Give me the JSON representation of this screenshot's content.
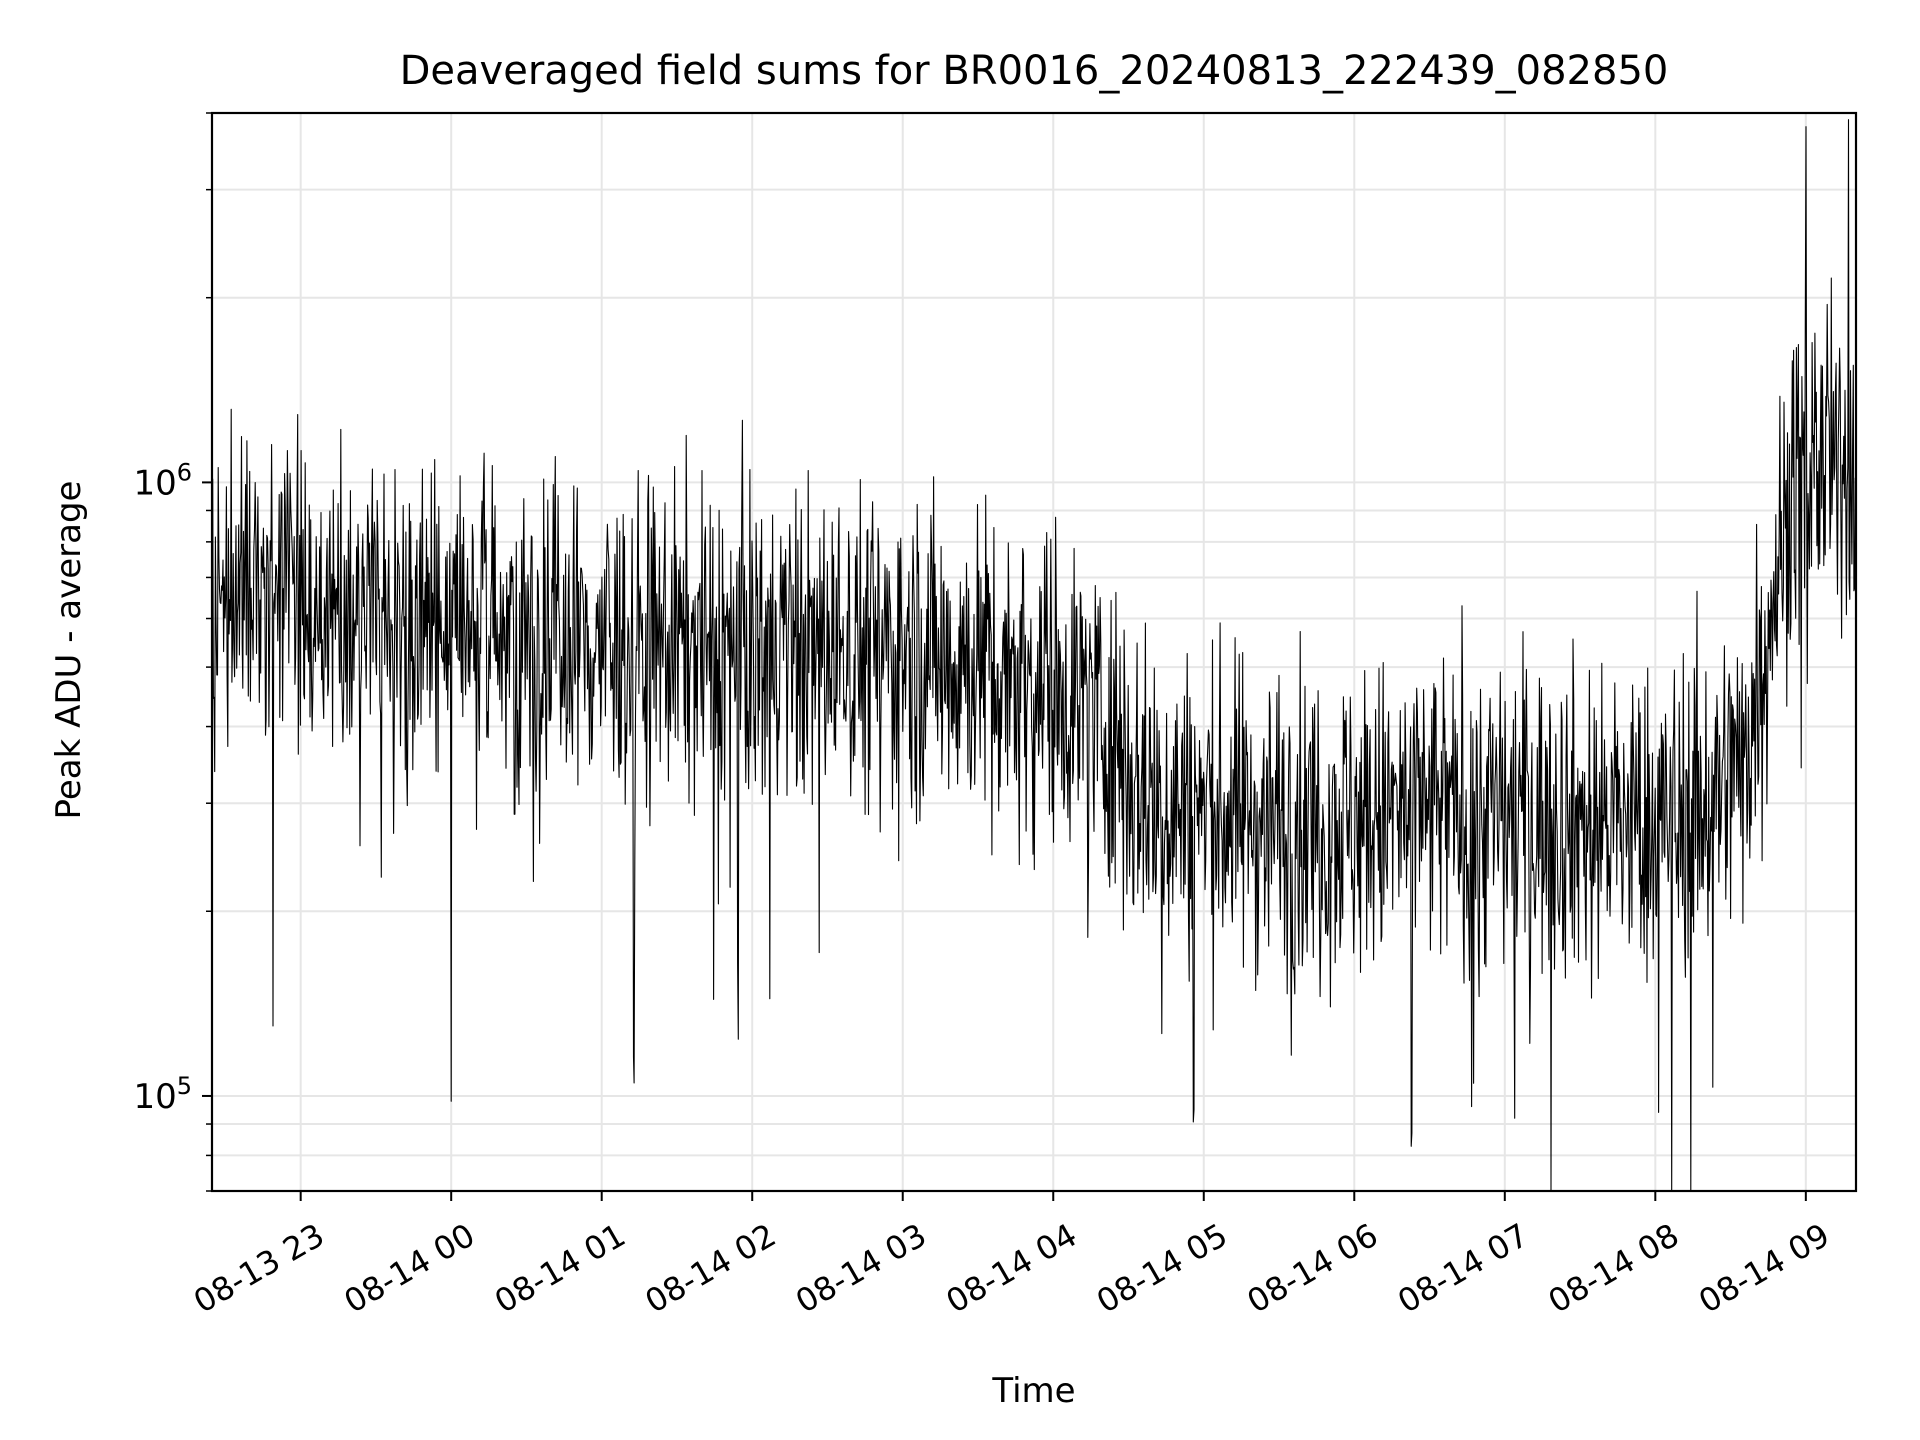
{
  "chart_data": {
    "type": "line",
    "title": "Deaveraged field sums for BR0016_20240813_222439_082850",
    "xlabel": "Time",
    "ylabel": "Peak ADU - average",
    "x_scale": "time",
    "y_scale": "log",
    "xlim": [
      "2024-08-13T22:24:39",
      "2024-08-14T09:20:00"
    ],
    "ylim": [
      70000,
      4000000
    ],
    "x_ticks": [
      {
        "value": "2024-08-13T23:00:00",
        "label": "08-13 23"
      },
      {
        "value": "2024-08-14T00:00:00",
        "label": "08-14 00"
      },
      {
        "value": "2024-08-14T01:00:00",
        "label": "08-14 01"
      },
      {
        "value": "2024-08-14T02:00:00",
        "label": "08-14 02"
      },
      {
        "value": "2024-08-14T03:00:00",
        "label": "08-14 03"
      },
      {
        "value": "2024-08-14T04:00:00",
        "label": "08-14 04"
      },
      {
        "value": "2024-08-14T05:00:00",
        "label": "08-14 05"
      },
      {
        "value": "2024-08-14T06:00:00",
        "label": "08-14 06"
      },
      {
        "value": "2024-08-14T07:00:00",
        "label": "08-14 07"
      },
      {
        "value": "2024-08-14T08:00:00",
        "label": "08-14 08"
      },
      {
        "value": "2024-08-14T09:00:00",
        "label": "08-14 09"
      }
    ],
    "y_ticks": [
      {
        "value": 100000,
        "base": "10",
        "exp": "5"
      },
      {
        "value": 1000000,
        "base": "10",
        "exp": "6"
      }
    ],
    "grid": true,
    "line_color": "#000000",
    "grid_color": "#e6e6e6",
    "series": [
      {
        "x": [
          "2024-08-13T22:24:39",
          "2024-08-13T22:40:00",
          "2024-08-13T23:00:00",
          "2024-08-13T23:20:00",
          "2024-08-13T23:40:00",
          "2024-08-14T00:00:00",
          "2024-08-14T00:20:00",
          "2024-08-14T00:40:00",
          "2024-08-14T01:00:00",
          "2024-08-14T01:20:00",
          "2024-08-14T01:40:00",
          "2024-08-14T02:00:00",
          "2024-08-14T02:20:00",
          "2024-08-14T02:40:00",
          "2024-08-14T03:00:00",
          "2024-08-14T03:20:00",
          "2024-08-14T03:40:00",
          "2024-08-14T04:00:00",
          "2024-08-14T04:15:00",
          "2024-08-14T04:25:00",
          "2024-08-14T04:30:00",
          "2024-08-14T04:40:00",
          "2024-08-14T05:00:00",
          "2024-08-14T05:20:00",
          "2024-08-14T05:40:00",
          "2024-08-14T06:00:00",
          "2024-08-14T06:20:00",
          "2024-08-14T06:40:00",
          "2024-08-14T07:00:00",
          "2024-08-14T07:20:00",
          "2024-08-14T07:40:00",
          "2024-08-14T08:00:00",
          "2024-08-14T08:20:00",
          "2024-08-14T08:35:00",
          "2024-08-14T08:45:00",
          "2024-08-14T08:55:00",
          "2024-08-14T09:05:00",
          "2024-08-14T09:15:00",
          "2024-08-14T09:20:00"
        ],
        "y": [
          700000,
          680000,
          650000,
          620000,
          600000,
          580000,
          570000,
          560000,
          550000,
          550000,
          545000,
          540000,
          540000,
          540000,
          530000,
          520000,
          500000,
          470000,
          440000,
          380000,
          340000,
          300000,
          290000,
          285000,
          280000,
          280000,
          285000,
          290000,
          290000,
          285000,
          280000,
          280000,
          300000,
          350000,
          600000,
          1000000,
          1100000,
          1000000,
          1100000
        ]
      }
    ],
    "points_shown": 2400,
    "noise_spread_log10": 0.13,
    "notable_spikes": [
      {
        "x": "2024-08-13T22:49:00",
        "y": 130000
      },
      {
        "x": "2024-08-14T00:00:00",
        "y": 98000
      },
      {
        "x": "2024-08-14T01:13:00",
        "y": 105000
      },
      {
        "x": "2024-08-14T04:56:00",
        "y": 95000
      },
      {
        "x": "2024-08-14T06:23:00",
        "y": 87000
      },
      {
        "x": "2024-08-14T07:04:00",
        "y": 92000
      },
      {
        "x": "2024-08-14T09:00:00",
        "y": 3800000
      },
      {
        "x": "2024-08-14T09:17:00",
        "y": 3900000
      }
    ]
  }
}
